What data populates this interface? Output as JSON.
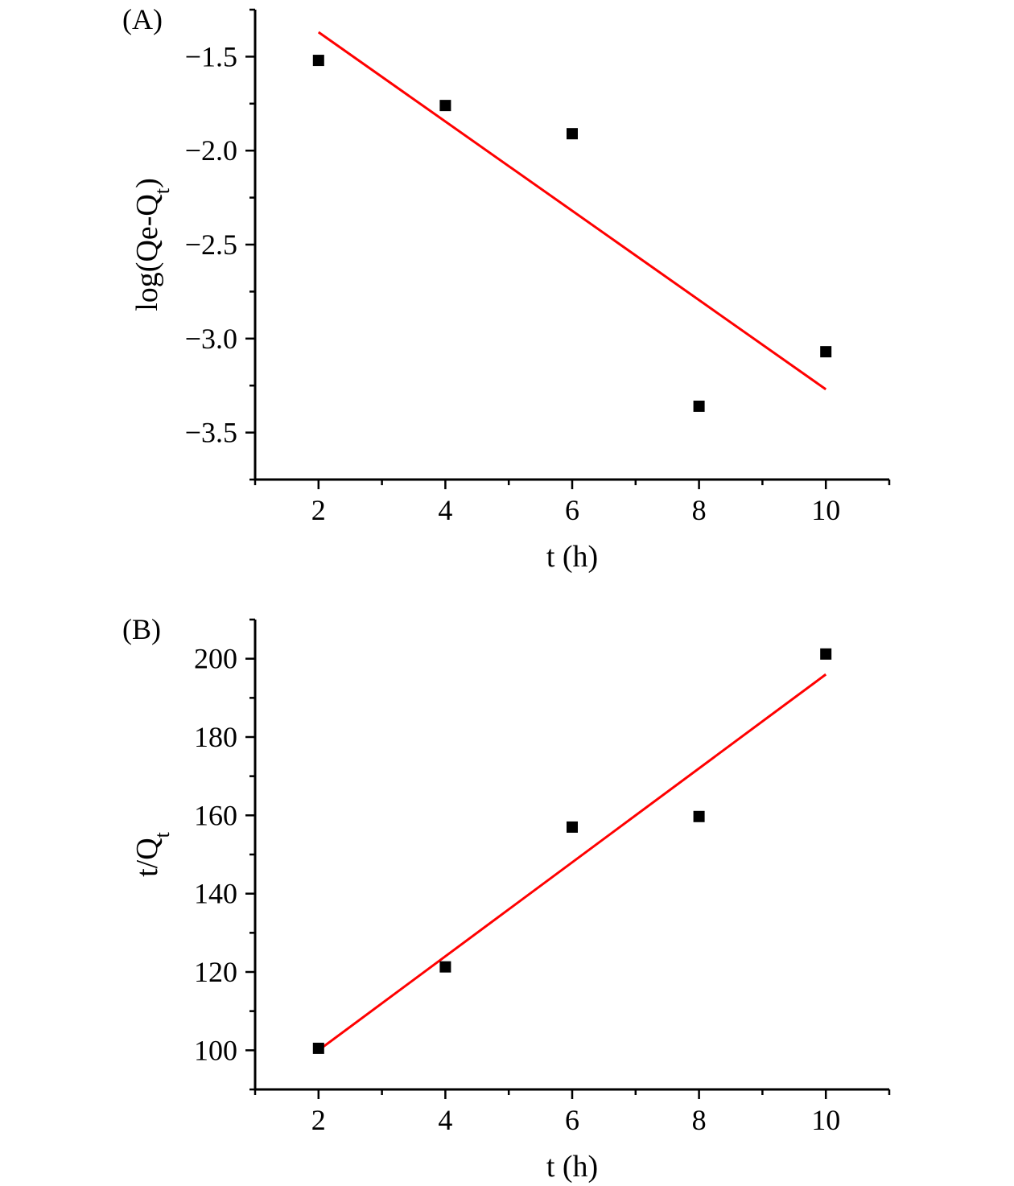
{
  "chart_data": [
    {
      "type": "scatter",
      "panel_label": "(A)",
      "xlabel": "t (h)",
      "ylabel": {
        "main": "log(Qe-Q",
        "sub": "t",
        "end": ")"
      },
      "xlim": [
        1,
        11
      ],
      "ylim": [
        -3.75,
        -1.25
      ],
      "xticks": [
        2,
        4,
        6,
        8,
        10
      ],
      "xtick_labels": [
        "2",
        "4",
        "6",
        "8",
        "10"
      ],
      "yticks": [
        -1.5,
        -2.0,
        -2.5,
        -3.0,
        -3.5
      ],
      "ytick_labels": [
        "−1.5",
        "−2.0",
        "−2.5",
        "−3.0",
        "−3.5"
      ],
      "points": [
        {
          "x": 2,
          "y": -1.52
        },
        {
          "x": 4,
          "y": -1.76
        },
        {
          "x": 6,
          "y": -1.91
        },
        {
          "x": 8,
          "y": -3.36
        },
        {
          "x": 10,
          "y": -3.07
        }
      ],
      "fit_line": {
        "x": [
          2,
          10
        ],
        "y": [
          -1.37,
          -3.27
        ]
      },
      "grid": false,
      "marker_color": "#000000",
      "fit_color": "#ff0000"
    },
    {
      "type": "scatter",
      "panel_label": "(B)",
      "xlabel": "t (h)",
      "ylabel": {
        "main": "t/Q",
        "sub": "t",
        "end": ""
      },
      "xlim": [
        1,
        11
      ],
      "ylim": [
        90,
        210
      ],
      "xticks": [
        2,
        4,
        6,
        8,
        10
      ],
      "xtick_labels": [
        "2",
        "4",
        "6",
        "8",
        "10"
      ],
      "yticks": [
        100,
        120,
        140,
        160,
        180,
        200
      ],
      "ytick_labels": [
        "100",
        "120",
        "140",
        "160",
        "180",
        "200"
      ],
      "points": [
        {
          "x": 2,
          "y": 100.5
        },
        {
          "x": 4,
          "y": 121.3
        },
        {
          "x": 6,
          "y": 157.0
        },
        {
          "x": 8,
          "y": 159.7
        },
        {
          "x": 10,
          "y": 201.2
        }
      ],
      "fit_line": {
        "x": [
          2,
          10
        ],
        "y": [
          100.0,
          196.0
        ]
      },
      "grid": false,
      "marker_color": "#000000",
      "fit_color": "#ff0000"
    }
  ]
}
